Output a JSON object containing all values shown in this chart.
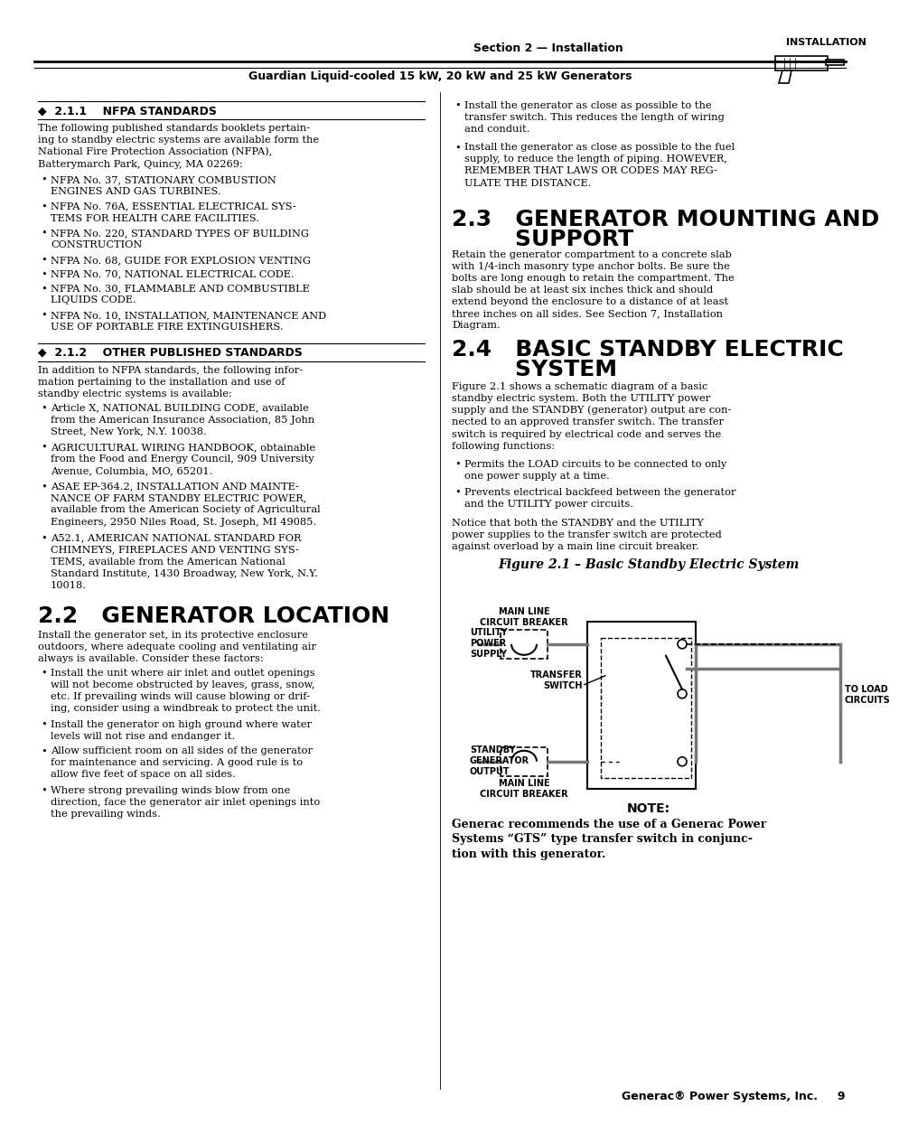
{
  "page_bg": "#ffffff",
  "header_section_text": "Section 2 — Installation",
  "header_sub_text": "Guardian Liquid-cooled 15 kW, 20 kW and 25 kW Generators",
  "header_install_label": "INSTALLATION",
  "footer_text": "Generac® Power Systems, Inc.     9",
  "section_21_title": "◆  2.1.1    NFPA STANDARDS",
  "section_21_body": "The following published standards booklets pertain-\ning to standby electric systems are available form the\nNational Fire Protection Association (NFPA),\nBatterymarch Park, Quincy, MA 02269:",
  "section_21_bullets": [
    "NFPA No. 37, STATIONARY COMBUSTION\nENGINES AND GAS TURBINES.",
    "NFPA No. 76A, ESSENTIAL ELECTRICAL SYS-\nTEMS FOR HEALTH CARE FACILITIES.",
    "NFPA No. 220, STANDARD TYPES OF BUILDING\nCONSTRUCTION",
    "NFPA No. 68, GUIDE FOR EXPLOSION VENTING",
    "NFPA No. 70, NATIONAL ELECTRICAL CODE.",
    "NFPA No. 30, FLAMMABLE AND COMBUSTIBLE\nLIQUIDS CODE.",
    "NFPA No. 10, INSTALLATION, MAINTENANCE AND\nUSE OF PORTABLE FIRE EXTINGUISHERS."
  ],
  "section_212_title": "◆  2.1.2    OTHER PUBLISHED STANDARDS",
  "section_212_body": "In addition to NFPA standards, the following infor-\nmation pertaining to the installation and use of\nstandby electric systems is available:",
  "section_212_bullets": [
    "Article X, NATIONAL BUILDING CODE, available\nfrom the American Insurance Association, 85 John\nStreet, New York, N.Y. 10038.",
    "AGRICULTURAL WIRING HANDBOOK, obtainable\nfrom the Food and Energy Council, 909 University\nAvenue, Columbia, MO, 65201.",
    "ASAE EP-364.2, INSTALLATION AND MAINTE-\nNANCE OF FARM STANDBY ELECTRIC POWER,\navailable from the American Society of Agricultural\nEngineers, 2950 Niles Road, St. Joseph, MI 49085.",
    "A52.1, AMERICAN NATIONAL STANDARD FOR\nCHIMNEYS, FIREPLACES AND VENTING SYS-\nTEMS, available from the American National\nStandard Institute, 1430 Broadway, New York, N.Y.\n10018."
  ],
  "section_22_title": "2.2   GENERATOR LOCATION",
  "section_22_body": "Install the generator set, in its protective enclosure\noutdoors, where adequate cooling and ventilating air\nalways is available. Consider these factors:",
  "section_22_bullets": [
    "Install the unit where air inlet and outlet openings\nwill not become obstructed by leaves, grass, snow,\netc. If prevailing winds will cause blowing or drif-\ning, consider using a windbreak to protect the unit.",
    "Install the generator on high ground where water\nlevels will not rise and endanger it.",
    "Allow sufficient room on all sides of the generator\nfor maintenance and servicing. A good rule is to\nallow five feet of space on all sides.",
    "Where strong prevailing winds blow from one\ndirection, face the generator air inlet openings into\nthe prevailing winds."
  ],
  "section_23_title_line1": "2.3   GENERATOR MOUNTING AND",
  "section_23_title_line2": "        SUPPORT",
  "section_23_body": "Retain the generator compartment to a concrete slab\nwith 1/4-inch masonry type anchor bolts. Be sure the\nbolts are long enough to retain the compartment. The\nslab should be at least six inches thick and should\nextend beyond the enclosure to a distance of at least\nthree inches on all sides. See Section 7, Installation\nDiagram.",
  "section_24_title_line1": "2.4   BASIC STANDBY ELECTRIC",
  "section_24_title_line2": "        SYSTEM",
  "section_24_body1": "Figure 2.1 shows a schematic diagram of a basic\nstandby electric system. Both the UTILITY power\nsupply and the STANDBY (generator) output are con-\nnected to an approved transfer switch. The transfer\nswitch is required by electrical code and serves the\nfollowing functions:",
  "section_24_bullets": [
    "Permits the LOAD circuits to be connected to only\none power supply at a time.",
    "Prevents electrical backfeed between the generator\nand the UTILITY power circuits."
  ],
  "section_24_body2": "Notice that both the STANDBY and the UTILITY\npower supplies to the transfer switch are protected\nagainst overload by a main line circuit breaker.",
  "section_right_col_top_bullets": [
    "Install the generator as close as possible to the\ntransfer switch. This reduces the length of wiring\nand conduit.",
    "Install the generator as close as possible to the fuel\nsupply, to reduce the length of piping. HOWEVER,\nREMEMBER THAT LAWS OR CODES MAY REG-\nULATE THE DISTANCE."
  ],
  "fig_title": "Figure 2.1 – Basic Standby Electric System",
  "note_title": "NOTE:",
  "note_body": "Generac recommends the use of a Generac Power\nSystems “GTS” type transfer switch in conjunc-\ntion with this generator."
}
